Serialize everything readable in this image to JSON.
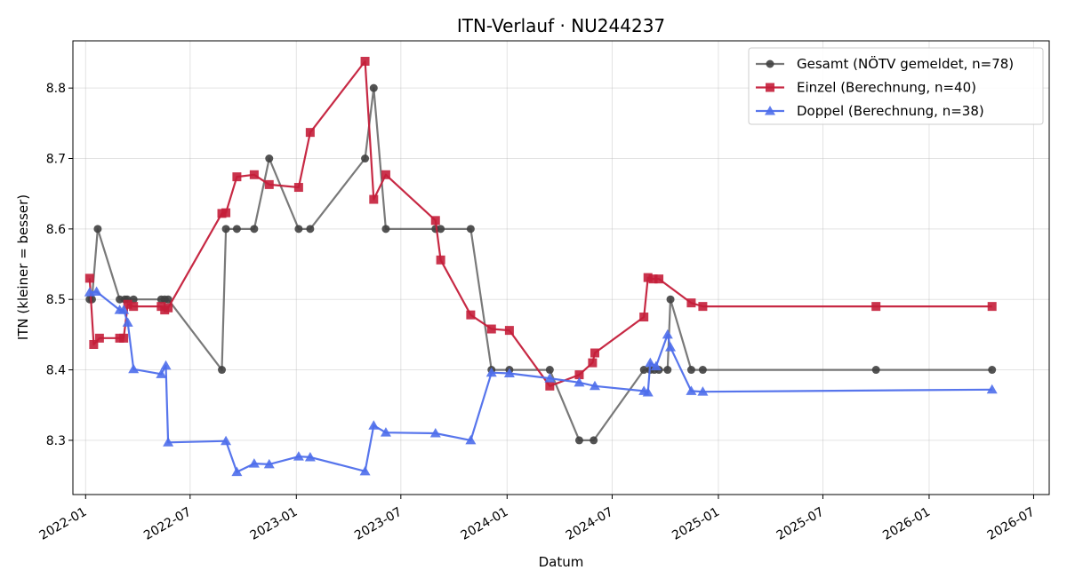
{
  "chart_data": {
    "type": "line",
    "title": "ITN-Verlauf · NU244237",
    "xlabel": "Datum",
    "ylabel": "ITN  (kleiner = besser)",
    "x_axis": "date",
    "xlim": [
      "2021-12-10",
      "2026-07-28"
    ],
    "ylim": [
      8.223,
      8.867
    ],
    "x_ticks": [
      "2022-01",
      "2022-07",
      "2023-01",
      "2023-07",
      "2024-01",
      "2024-07",
      "2025-01",
      "2025-07",
      "2026-01",
      "2026-07"
    ],
    "y_ticks": [
      8.3,
      8.4,
      8.5,
      8.6,
      8.7,
      8.8
    ],
    "grid": true,
    "legend_position": "top-right",
    "series": [
      {
        "name": "Gesamt (NÖTV gemeldet, n=78)",
        "color": "#404040",
        "marker": "circle",
        "points": [
          [
            "2022-01-08",
            8.5
          ],
          [
            "2022-01-12",
            8.5
          ],
          [
            "2022-01-22",
            8.6
          ],
          [
            "2022-03-01",
            8.5
          ],
          [
            "2022-03-10",
            8.5
          ],
          [
            "2022-03-14",
            8.5
          ],
          [
            "2022-03-25",
            8.5
          ],
          [
            "2022-05-12",
            8.5
          ],
          [
            "2022-05-18",
            8.5
          ],
          [
            "2022-05-24",
            8.5
          ],
          [
            "2022-08-25",
            8.4
          ],
          [
            "2022-09-01",
            8.6
          ],
          [
            "2022-09-20",
            8.6
          ],
          [
            "2022-10-20",
            8.6
          ],
          [
            "2022-11-15",
            8.7
          ],
          [
            "2023-01-05",
            8.6
          ],
          [
            "2023-01-25",
            8.6
          ],
          [
            "2023-04-30",
            8.7
          ],
          [
            "2023-05-15",
            8.8
          ],
          [
            "2023-06-05",
            8.6
          ],
          [
            "2023-08-30",
            8.6
          ],
          [
            "2023-09-08",
            8.6
          ],
          [
            "2023-10-30",
            8.6
          ],
          [
            "2023-12-05",
            8.4
          ],
          [
            "2024-01-05",
            8.4
          ],
          [
            "2024-03-15",
            8.4
          ],
          [
            "2024-05-05",
            8.3
          ],
          [
            "2024-05-30",
            8.3
          ],
          [
            "2024-08-25",
            8.4
          ],
          [
            "2024-09-05",
            8.4
          ],
          [
            "2024-09-12",
            8.4
          ],
          [
            "2024-09-20",
            8.4
          ],
          [
            "2024-10-05",
            8.4
          ],
          [
            "2024-10-10",
            8.5
          ],
          [
            "2024-11-15",
            8.4
          ],
          [
            "2024-12-05",
            8.4
          ],
          [
            "2025-10-01",
            8.4
          ],
          [
            "2026-04-20",
            8.4
          ]
        ]
      },
      {
        "name": "Einzel (Berechnung, n=40)",
        "color": "#c41e3a",
        "marker": "square",
        "points": [
          [
            "2022-01-08",
            8.53
          ],
          [
            "2022-01-15",
            8.436
          ],
          [
            "2022-01-25",
            8.445
          ],
          [
            "2022-03-01",
            8.445
          ],
          [
            "2022-03-08",
            8.445
          ],
          [
            "2022-03-15",
            8.493
          ],
          [
            "2022-03-25",
            8.49
          ],
          [
            "2022-05-12",
            8.49
          ],
          [
            "2022-05-18",
            8.485
          ],
          [
            "2022-05-24",
            8.488
          ],
          [
            "2022-08-25",
            8.622
          ],
          [
            "2022-09-01",
            8.623
          ],
          [
            "2022-09-20",
            8.674
          ],
          [
            "2022-10-20",
            8.677
          ],
          [
            "2022-11-15",
            8.663
          ],
          [
            "2023-01-05",
            8.659
          ],
          [
            "2023-01-25",
            8.737
          ],
          [
            "2023-04-30",
            8.838
          ],
          [
            "2023-05-15",
            8.642
          ],
          [
            "2023-06-05",
            8.677
          ],
          [
            "2023-08-30",
            8.612
          ],
          [
            "2023-09-08",
            8.556
          ],
          [
            "2023-10-30",
            8.478
          ],
          [
            "2023-12-05",
            8.458
          ],
          [
            "2024-01-05",
            8.456
          ],
          [
            "2024-03-15",
            8.377
          ],
          [
            "2024-05-05",
            8.393
          ],
          [
            "2024-05-28",
            8.41
          ],
          [
            "2024-06-01",
            8.424
          ],
          [
            "2024-08-25",
            8.475
          ],
          [
            "2024-09-01",
            8.531
          ],
          [
            "2024-09-10",
            8.529
          ],
          [
            "2024-09-20",
            8.529
          ],
          [
            "2024-11-15",
            8.495
          ],
          [
            "2024-12-05",
            8.49
          ],
          [
            "2025-10-01",
            8.49
          ],
          [
            "2026-04-20",
            8.49
          ]
        ]
      },
      {
        "name": "Doppel (Berechnung, n=38)",
        "color": "#4e6eeb",
        "marker": "triangle",
        "points": [
          [
            "2022-01-08",
            8.51
          ],
          [
            "2022-01-20",
            8.511
          ],
          [
            "2022-03-01",
            8.485
          ],
          [
            "2022-03-08",
            8.485
          ],
          [
            "2022-03-15",
            8.467
          ],
          [
            "2022-03-25",
            8.401
          ],
          [
            "2022-05-12",
            8.394
          ],
          [
            "2022-05-20",
            8.406
          ],
          [
            "2022-05-24",
            8.297
          ],
          [
            "2022-09-01",
            8.299
          ],
          [
            "2022-09-20",
            8.255
          ],
          [
            "2022-10-20",
            8.267
          ],
          [
            "2022-11-15",
            8.266
          ],
          [
            "2023-01-05",
            8.277
          ],
          [
            "2023-01-25",
            8.276
          ],
          [
            "2023-04-30",
            8.256
          ],
          [
            "2023-05-15",
            8.321
          ],
          [
            "2023-06-05",
            8.311
          ],
          [
            "2023-08-30",
            8.31
          ],
          [
            "2023-10-30",
            8.3
          ],
          [
            "2023-12-05",
            8.396
          ],
          [
            "2024-01-05",
            8.395
          ],
          [
            "2024-03-15",
            8.388
          ],
          [
            "2024-05-05",
            8.382
          ],
          [
            "2024-06-01",
            8.377
          ],
          [
            "2024-08-25",
            8.37
          ],
          [
            "2024-09-01",
            8.368
          ],
          [
            "2024-09-05",
            8.41
          ],
          [
            "2024-09-15",
            8.405
          ],
          [
            "2024-10-05",
            8.45
          ],
          [
            "2024-10-10",
            8.432
          ],
          [
            "2024-11-15",
            8.37
          ],
          [
            "2024-12-05",
            8.369
          ],
          [
            "2026-04-20",
            8.372
          ]
        ]
      }
    ]
  }
}
